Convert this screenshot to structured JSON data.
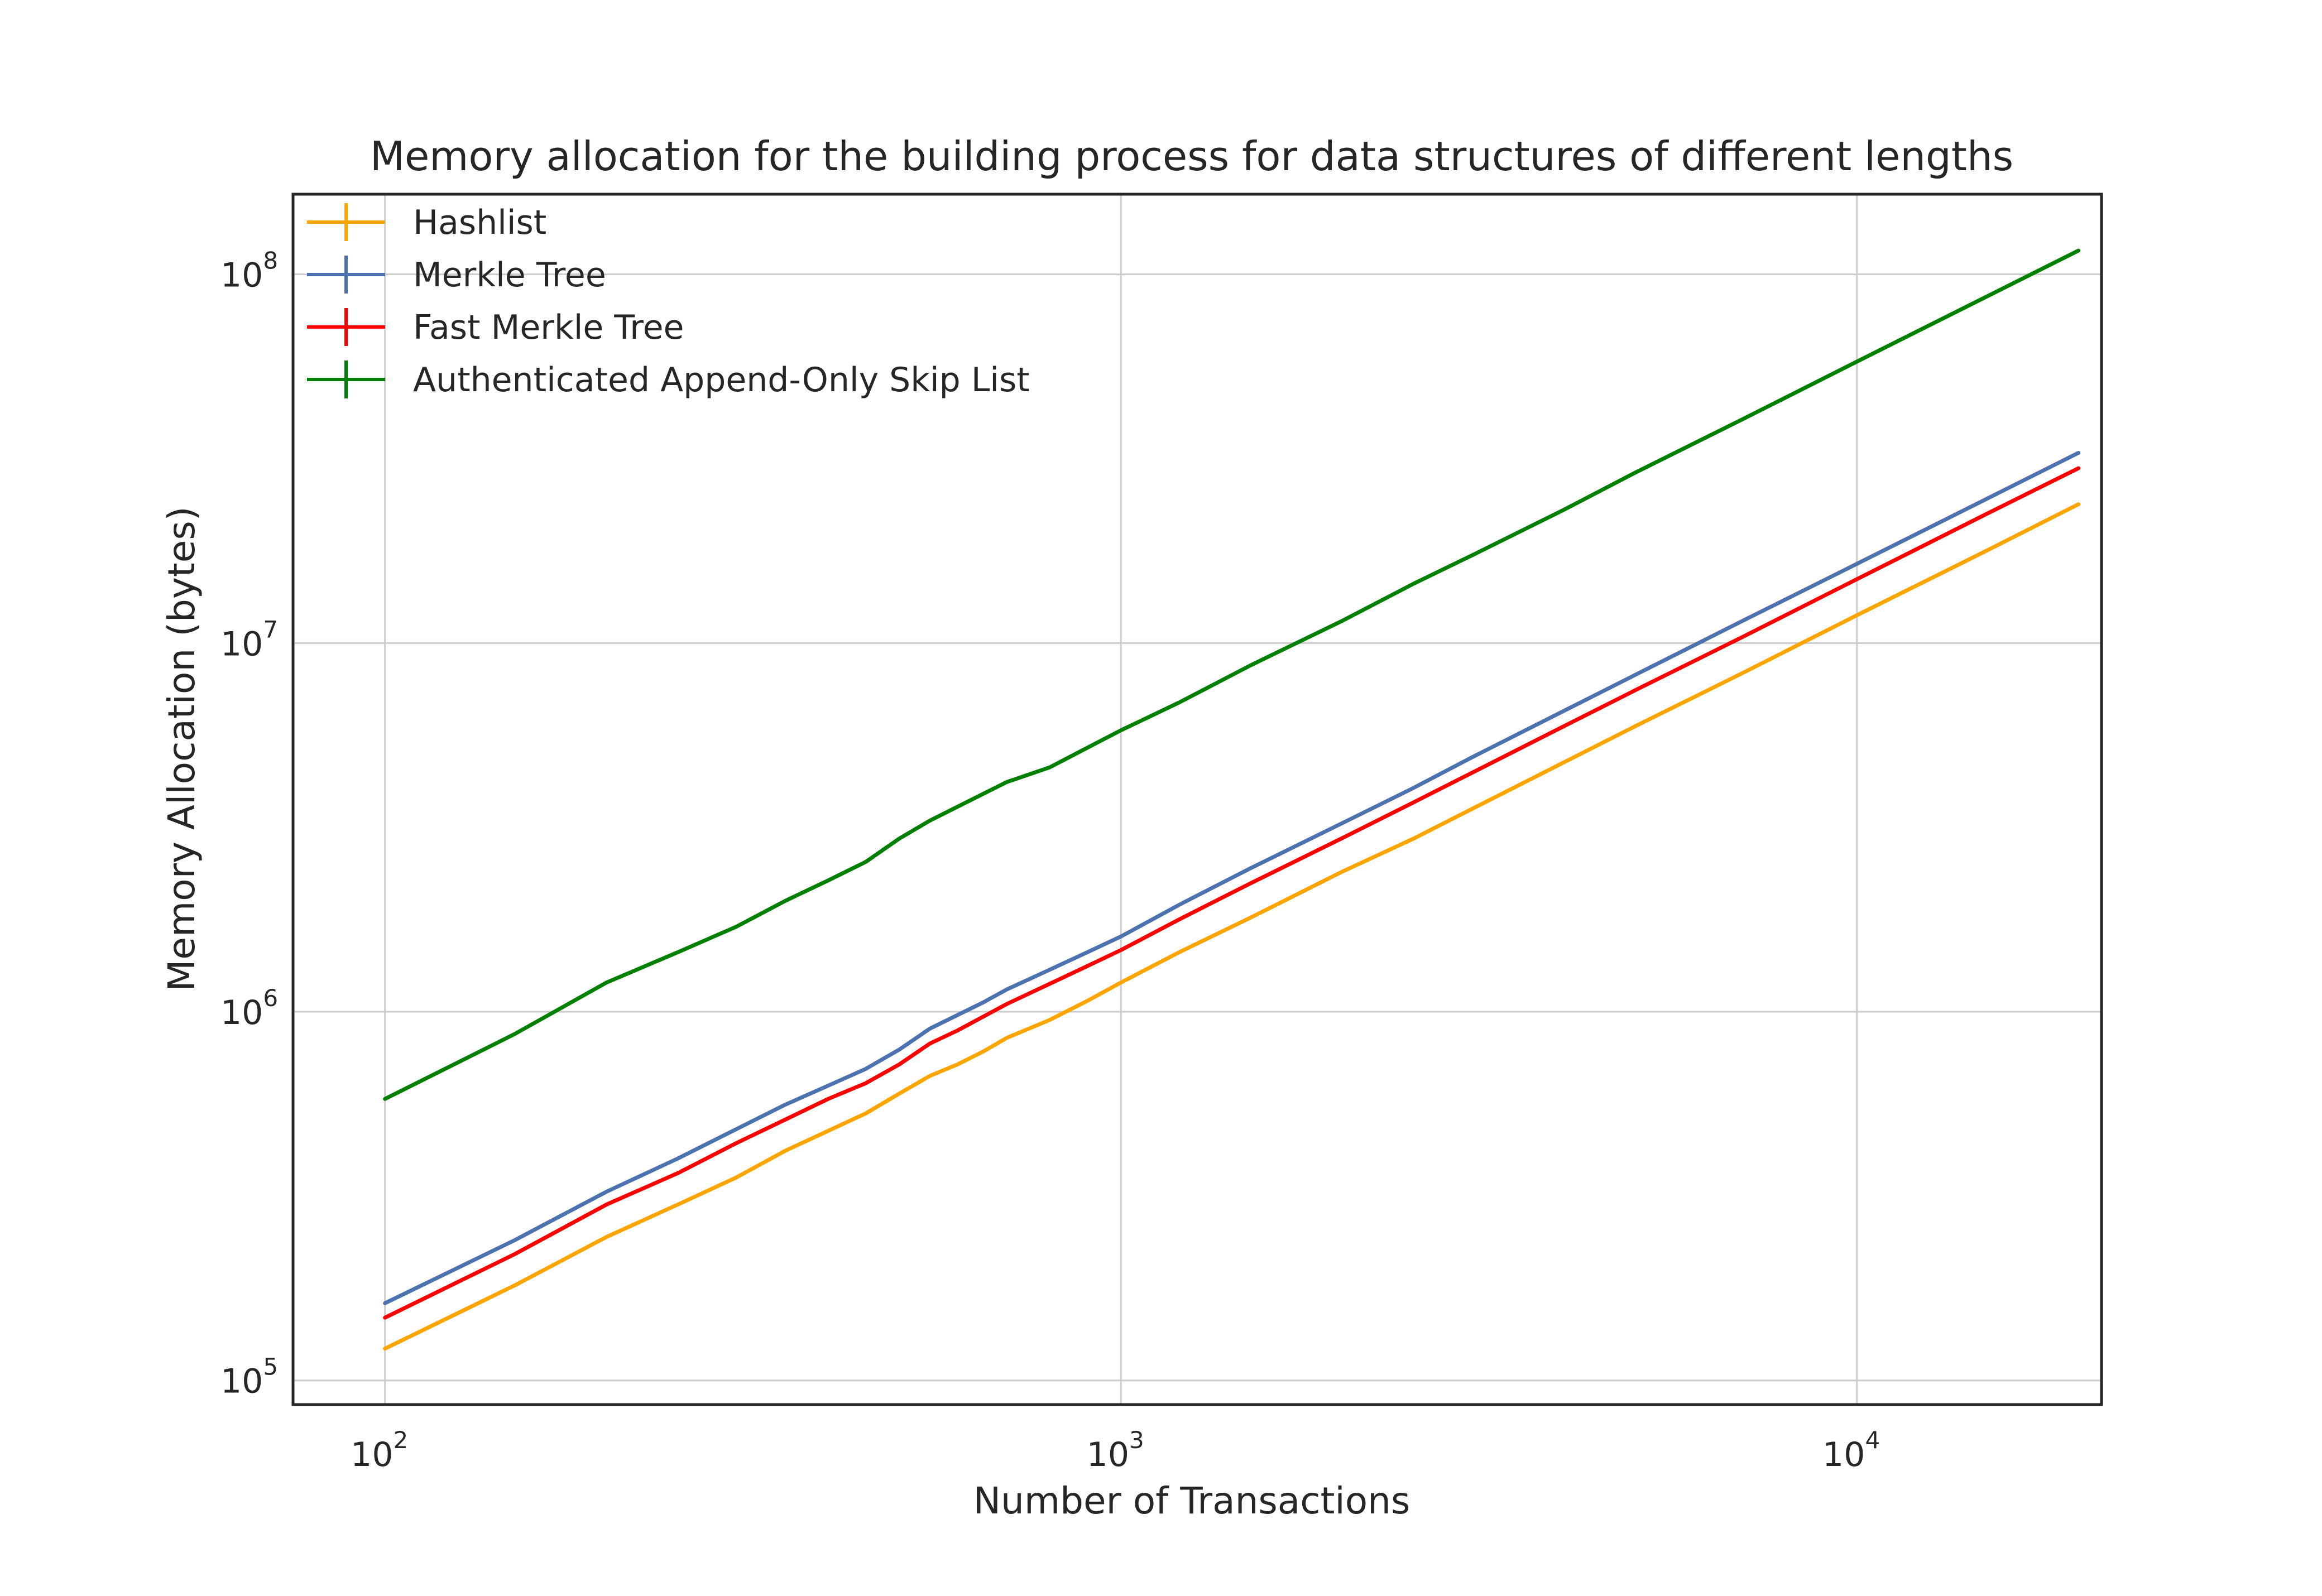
{
  "chart_data": {
    "type": "line",
    "title": "Memory allocation for the building process for data structures of different lengths",
    "xlabel": "Number of Transactions",
    "ylabel": "Memory Allocation (bytes)",
    "xscale": "log",
    "yscale": "log",
    "xlim": [
      75,
      21500
    ],
    "ylim": [
      86000,
      165000000
    ],
    "grid": true,
    "legend_position": "top-left",
    "x_ticks": [
      {
        "value": 100,
        "base": "10",
        "exp": "2"
      },
      {
        "value": 1000,
        "base": "10",
        "exp": "3"
      },
      {
        "value": 10000,
        "base": "10",
        "exp": "4"
      }
    ],
    "y_ticks": [
      {
        "value": 100000,
        "base": "10",
        "exp": "5"
      },
      {
        "value": 1000000,
        "base": "10",
        "exp": "6"
      },
      {
        "value": 10000000,
        "base": "10",
        "exp": "7"
      },
      {
        "value": 100000000,
        "base": "10",
        "exp": "8"
      }
    ],
    "x": [
      100,
      150,
      200,
      250,
      300,
      350,
      400,
      450,
      500,
      550,
      600,
      650,
      700,
      800,
      900,
      1000,
      1200,
      1500,
      2000,
      2500,
      3000,
      4000,
      5000,
      7000,
      10000,
      15000,
      20000
    ],
    "series": [
      {
        "name": "Hashlist",
        "color": "#ffa500",
        "values": [
          122000,
          181000,
          245000,
          300000,
          355000,
          420000,
          475000,
          530000,
          600000,
          670000,
          720000,
          780000,
          850000,
          950000,
          1070000,
          1200000,
          1450000,
          1800000,
          2400000,
          2950000,
          3550000,
          4750000,
          5950000,
          8300000,
          11900000,
          17800000,
          23800000
        ]
      },
      {
        "name": "Merkle Tree",
        "color": "#4c72b0",
        "values": [
          162000,
          240000,
          325000,
          400000,
          480000,
          560000,
          630000,
          700000,
          790000,
          900000,
          980000,
          1060000,
          1150000,
          1300000,
          1450000,
          1600000,
          1950000,
          2450000,
          3250000,
          4050000,
          4900000,
          6550000,
          8200000,
          11500000,
          16400000,
          24600000,
          32800000
        ]
      },
      {
        "name": "Fast Merkle Tree",
        "color": "#ff0000",
        "values": [
          148000,
          220000,
          300000,
          365000,
          440000,
          510000,
          580000,
          640000,
          720000,
          820000,
          890000,
          970000,
          1050000,
          1190000,
          1330000,
          1470000,
          1780000,
          2230000,
          2960000,
          3700000,
          4450000,
          5950000,
          7450000,
          10400000,
          14900000,
          22400000,
          29800000
        ]
      },
      {
        "name": "Authenticated Append-Only Skip List",
        "color": "#008000",
        "values": [
          580000,
          870000,
          1200000,
          1450000,
          1700000,
          2000000,
          2270000,
          2550000,
          2950000,
          3300000,
          3600000,
          3900000,
          4200000,
          4600000,
          5200000,
          5800000,
          6900000,
          8700000,
          11500000,
          14500000,
          17300000,
          23000000,
          29000000,
          40500000,
          58000000,
          87000000,
          116000000
        ]
      }
    ]
  }
}
